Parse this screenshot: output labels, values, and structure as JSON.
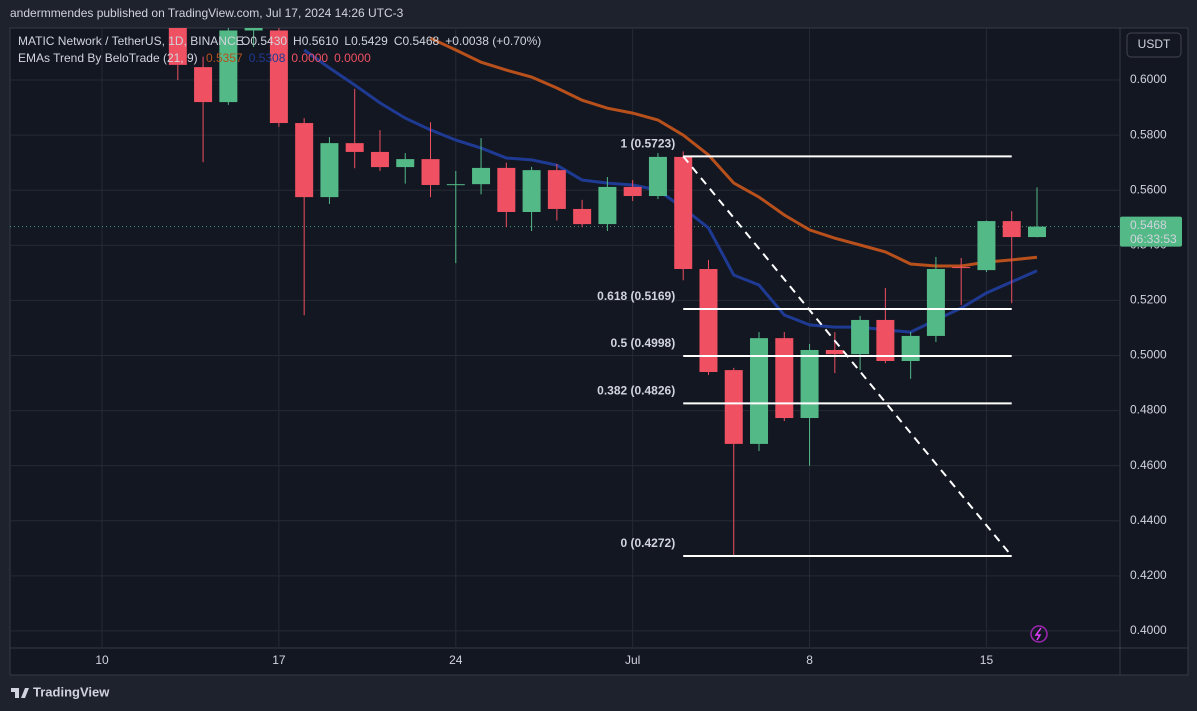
{
  "header": {
    "publisher": "andermmendes published on TradingView.com, Jul 17, 2024 14:26 UTC-3",
    "footer_brand": "TradingView",
    "currency_button": "USDT"
  },
  "chart_data": {
    "type": "candlestick",
    "symbol": "MATIC Network / TetherUS, 1D, BINANCE",
    "ohlc_legend": [
      "O0.5430",
      "H0.5610",
      "L0.5429",
      "C0.5468",
      "+0.0038 (+0.70%)"
    ],
    "indicator": "EMAs Trend By BeloTrade (21, 9)",
    "indicator_values": [
      "0.5357",
      "0.5308",
      "0.0000",
      "0.0000"
    ],
    "categories": [
      "10",
      null,
      null,
      null,
      null,
      null,
      null,
      "17",
      null,
      null,
      null,
      null,
      null,
      null,
      "24",
      null,
      null,
      null,
      null,
      null,
      null,
      "Jul",
      null,
      null,
      null,
      null,
      null,
      null,
      "8",
      null,
      null,
      null,
      null,
      null,
      null,
      "15",
      null,
      null
    ],
    "open": [
      null,
      null,
      null,
      0.624,
      0.6047,
      0.592,
      0.618,
      0.618,
      0.5844,
      0.5575,
      0.5771,
      0.5739,
      0.5684,
      0.5713,
      0.5619,
      0.5622,
      0.5681,
      0.5521,
      0.5673,
      0.5532,
      0.5477,
      0.5612,
      0.5579,
      0.5721,
      0.5314,
      0.4947,
      0.4679,
      0.5063,
      0.4773,
      0.502,
      0.5005,
      0.5129,
      0.498,
      0.5071,
      0.5321,
      0.531,
      0.5488,
      0.543
    ],
    "high": [
      null,
      null,
      null,
      0.628,
      0.6085,
      0.62,
      0.628,
      0.6215,
      0.5862,
      0.5793,
      0.5968,
      0.5818,
      0.5735,
      0.5847,
      0.567,
      0.5789,
      0.57,
      0.5685,
      0.5695,
      0.5565,
      0.5648,
      0.5637,
      0.5735,
      0.5741,
      0.5347,
      0.4955,
      0.5085,
      0.5085,
      0.5042,
      0.5085,
      0.5144,
      0.5245,
      0.5085,
      0.5358,
      0.5354,
      0.549,
      0.5524,
      0.561
    ],
    "low": [
      null,
      null,
      null,
      0.6,
      0.5702,
      0.591,
      0.612,
      0.583,
      0.5146,
      0.555,
      0.568,
      0.567,
      0.5624,
      0.5575,
      0.5335,
      0.5585,
      0.5466,
      0.5452,
      0.549,
      0.5466,
      0.5452,
      0.5561,
      0.5568,
      0.5273,
      0.4929,
      0.4272,
      0.4653,
      0.4762,
      0.46,
      0.4936,
      0.4947,
      0.4972,
      0.4915,
      0.5049,
      0.5183,
      0.5303,
      0.519,
      0.5429
    ],
    "close": [
      null,
      null,
      null,
      0.6055,
      0.592,
      0.618,
      0.624,
      0.5844,
      0.5575,
      0.5771,
      0.5739,
      0.5684,
      0.5713,
      0.5619,
      0.5622,
      0.5681,
      0.5521,
      0.5673,
      0.5532,
      0.5477,
      0.5612,
      0.5579,
      0.5721,
      0.5314,
      0.494,
      0.4679,
      0.5063,
      0.4773,
      0.502,
      0.5005,
      0.5129,
      0.498,
      0.5071,
      0.5314,
      0.5318,
      0.5488,
      0.543,
      0.5468
    ],
    "up_color": "#53b987",
    "down_color": "#ef5062",
    "series": [
      {
        "color": "#b8501c",
        "values": [
          null,
          null,
          null,
          null,
          null,
          null,
          null,
          null,
          null,
          null,
          null,
          null,
          null,
          0.6152,
          0.6109,
          0.6065,
          0.6036,
          0.6011,
          0.5971,
          0.5927,
          0.5898,
          0.588,
          0.5855,
          0.58,
          0.5728,
          0.5626,
          0.5575,
          0.551,
          0.5456,
          0.5426,
          0.5401,
          0.5376,
          0.5332,
          0.5325,
          0.5325,
          0.5339,
          0.5347,
          0.5357
        ]
      },
      {
        "color": "#1f3a93",
        "values": [
          null,
          null,
          null,
          null,
          null,
          null,
          null,
          null,
          0.6109,
          0.6044,
          0.5982,
          0.5917,
          0.5862,
          0.5819,
          0.5782,
          0.5753,
          0.5717,
          0.571,
          0.5691,
          0.5637,
          0.5626,
          0.5619,
          0.5601,
          0.5535,
          0.5463,
          0.5292,
          0.5256,
          0.5147,
          0.5111,
          0.5103,
          0.5103,
          0.5093,
          0.5085,
          0.5129,
          0.5172,
          0.5227,
          0.5267,
          0.5308
        ]
      }
    ],
    "fib_levels": [
      {
        "label": "1 (0.5723)",
        "value": 0.5723
      },
      {
        "label": "0.618 (0.5169)",
        "value": 0.5169
      },
      {
        "label": "0.5 (0.4998)",
        "value": 0.4998
      },
      {
        "label": "0.382 (0.4826)",
        "value": 0.4826
      },
      {
        "label": "0 (0.4272)",
        "value": 0.4272
      }
    ],
    "fib_range": [
      23,
      36
    ],
    "last_price": {
      "value": 0.5468,
      "label": "0.5468"
    },
    "countdown": "06:33:53",
    "ylim": [
      0.3938,
      0.6189
    ],
    "yticks": [
      {
        "value": 0.4,
        "label": "0.4000"
      },
      {
        "value": 0.42,
        "label": "0.4200"
      },
      {
        "value": 0.44,
        "label": "0.4400"
      },
      {
        "value": 0.46,
        "label": "0.4600"
      },
      {
        "value": 0.48,
        "label": "0.4800"
      },
      {
        "value": 0.5,
        "label": "0.5000"
      },
      {
        "value": 0.52,
        "label": "0.5200"
      },
      {
        "value": 0.54,
        "label": "0.5400"
      },
      {
        "value": 0.56,
        "label": "0.5600"
      },
      {
        "value": 0.58,
        "label": "0.5800"
      },
      {
        "value": 0.6,
        "label": "0.6000"
      }
    ],
    "grid": true
  }
}
